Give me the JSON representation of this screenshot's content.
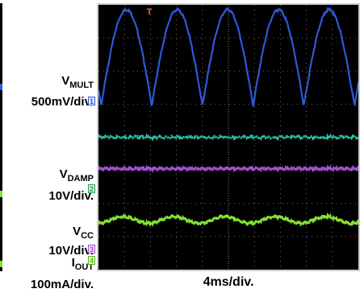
{
  "labels": {
    "vmult_name": "V",
    "vmult_sub": "MULT",
    "vmult_scale": "500mV/div.",
    "vdamp_name": "V",
    "vdamp_sub": "DAMP",
    "vdamp_scale": "10V/div.",
    "vcc_name": "V",
    "vcc_sub": "CC",
    "vcc_scale": "10V/div.",
    "iout_name": "I",
    "iout_sub": "OUT",
    "iout_scale": "100mA/div.",
    "timebase": "4ms/div."
  },
  "markers": {
    "ch1": "1",
    "ch2": "2",
    "ch3": "3",
    "ch4": "4",
    "trigger": "T"
  },
  "colors": {
    "vmult": "#2f58d8",
    "iout": "#29c6a8",
    "vdamp": "#a44fd0",
    "vcc": "#86e034",
    "grid": "#6e6e6e",
    "trigger": "#e96a2a"
  },
  "chart_data": {
    "type": "line",
    "x_unit": "div",
    "x_range": [
      0,
      10
    ],
    "y_unit": "div",
    "y_range": [
      0,
      8
    ],
    "grid": true,
    "series": [
      {
        "channel": "1",
        "color": "#2f58d8",
        "period_div": 1.95,
        "phase_div": 0.1,
        "peak_div": 7.85,
        "trough_div": 4.95
      },
      {
        "channel": "4",
        "color": "#29c6a8",
        "level_div": 4.0
      },
      {
        "channel": "2",
        "color": "#a44fd0",
        "level_div": 3.05
      },
      {
        "channel": "3",
        "color": "#86e034",
        "level_div": 1.5,
        "ripple_div": 0.1,
        "period_div": 1.95
      }
    ]
  }
}
